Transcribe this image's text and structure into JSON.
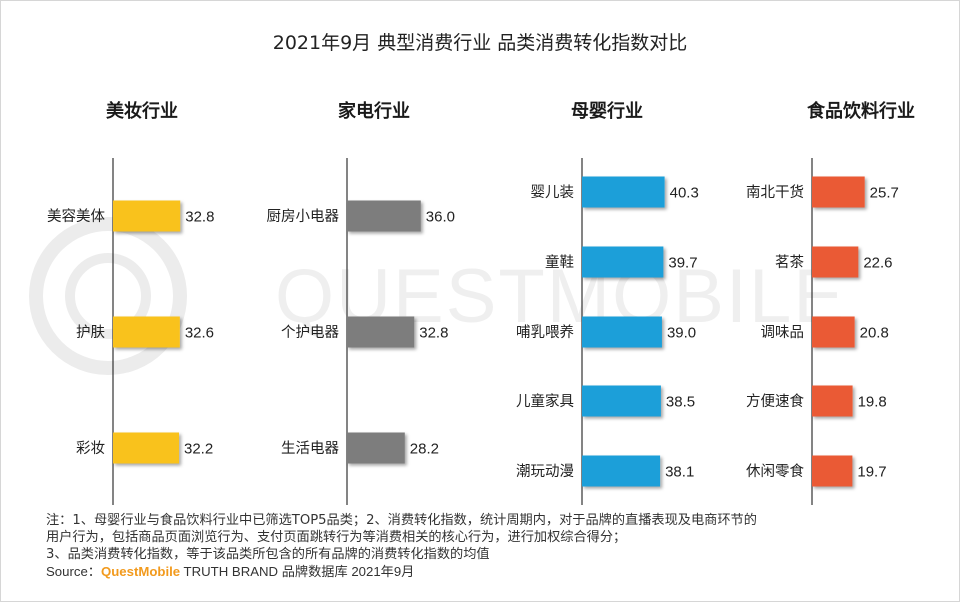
{
  "chart_data": {
    "type": "bar",
    "title": "2021年9月 典型消费行业 品类消费转化指数对比",
    "watermark": "QUESTMOBILE",
    "panels": [
      {
        "name": "美妆行业",
        "color": "#f9c21a",
        "categories": [
          "美容美体",
          "护肤",
          "彩妆"
        ],
        "values": [
          32.8,
          32.6,
          32.2
        ],
        "labels": [
          "32.8",
          "32.6",
          "32.2"
        ]
      },
      {
        "name": "家电行业",
        "color": "#7d7d7d",
        "categories": [
          "厨房小电器",
          "个护电器",
          "生活电器"
        ],
        "values": [
          36.0,
          32.8,
          28.2
        ],
        "labels": [
          "36.0",
          "32.8",
          "28.2"
        ]
      },
      {
        "name": "母婴行业",
        "color": "#1f9fd9",
        "categories": [
          "婴儿装",
          "童鞋",
          "哺乳喂养",
          "儿童家具",
          "潮玩动漫"
        ],
        "values": [
          40.3,
          39.7,
          39.0,
          38.5,
          38.1
        ],
        "labels": [
          "40.3",
          "39.7",
          "39.0",
          "38.5",
          "38.1"
        ]
      },
      {
        "name": "食品饮料行业",
        "color": "#ea5a36",
        "categories": [
          "南北干货",
          "茗茶",
          "调味品",
          "方便速食",
          "休闲零食"
        ],
        "values": [
          25.7,
          22.6,
          20.8,
          19.8,
          19.7
        ],
        "labels": [
          "25.7",
          "22.6",
          "20.8",
          "19.8",
          "19.7"
        ]
      }
    ]
  },
  "notes": {
    "line1": "注：1、母婴行业与食品饮料行业中已筛选TOP5品类；2、消费转化指数，统计周期内，对于品牌的直播表现及电商环节的",
    "line2": "用户行为，包括商品页面浏览行为、支付页面跳转行为等消费相关的核心行为，进行加权综合得分；",
    "line3": "3、品类消费转化指数，等于该品类所包含的所有品牌的消费转化指数的均值",
    "source_label": "Source：",
    "source_brand": "QuestMobile",
    "source_rest": " TRUTH BRAND 品牌数据库 2021年9月"
  }
}
